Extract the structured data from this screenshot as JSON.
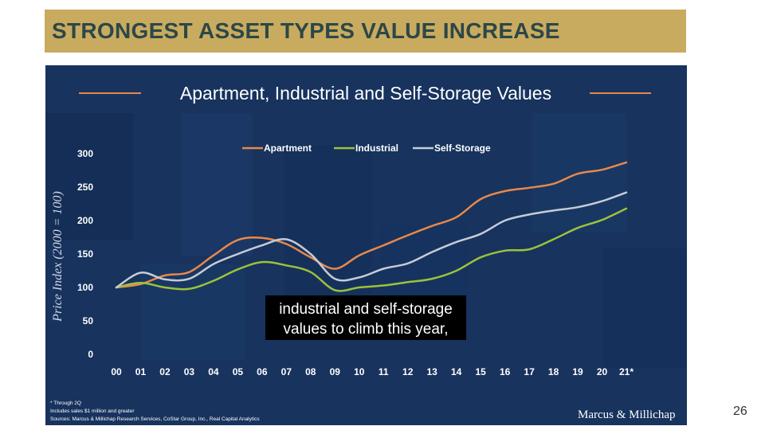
{
  "slide": {
    "title": "STRONGEST ASSET TYPES VALUE INCREASE",
    "page_number": "26"
  },
  "caption": {
    "line1": "industrial and self-storage",
    "line2": "values to climb this year,"
  },
  "footnotes": {
    "note1": "* Through 2Q",
    "note2": "Includes sales $1 million and greater",
    "note3": "Sources: Marcus & Millichap Research Services, CoStar Group, Inc., Real Capital Analytics"
  },
  "brand": {
    "logo_text": "Marcus & Millichap"
  },
  "colors": {
    "panel_background": "#17335e",
    "title_bar": "#c9ab5f",
    "title_text": "#2c4748",
    "apartment": "#e8884a",
    "industrial": "#9cc23a",
    "self_storage": "#c6cbd6"
  },
  "chart_data": {
    "type": "line",
    "title": "Apartment, Industrial and Self-Storage Values",
    "ylabel": "Price Index (2000 = 100)",
    "xlabel": "",
    "ylim": [
      0,
      300
    ],
    "yticks": [
      0,
      50,
      100,
      150,
      200,
      250,
      300
    ],
    "grid": false,
    "legend_position": "top",
    "categories": [
      "00",
      "01",
      "02",
      "03",
      "04",
      "05",
      "06",
      "07",
      "08",
      "09",
      "10",
      "11",
      "12",
      "13",
      "14",
      "15",
      "16",
      "17",
      "18",
      "19",
      "20",
      "21*"
    ],
    "series": [
      {
        "name": "Apartment",
        "color": "#e8884a",
        "values": [
          100,
          105,
          118,
          123,
          148,
          171,
          174,
          165,
          145,
          128,
          148,
          163,
          178,
          192,
          205,
          232,
          244,
          249,
          255,
          270,
          276,
          287
        ]
      },
      {
        "name": "Industrial",
        "color": "#9cc23a",
        "values": [
          100,
          107,
          100,
          98,
          110,
          127,
          138,
          133,
          123,
          96,
          100,
          103,
          108,
          113,
          125,
          145,
          155,
          157,
          172,
          189,
          201,
          218
        ]
      },
      {
        "name": "Self-Storage",
        "color": "#c6cbd6",
        "values": [
          100,
          122,
          112,
          113,
          135,
          150,
          163,
          172,
          150,
          113,
          115,
          128,
          136,
          153,
          168,
          180,
          200,
          209,
          215,
          220,
          229,
          242
        ]
      }
    ]
  }
}
